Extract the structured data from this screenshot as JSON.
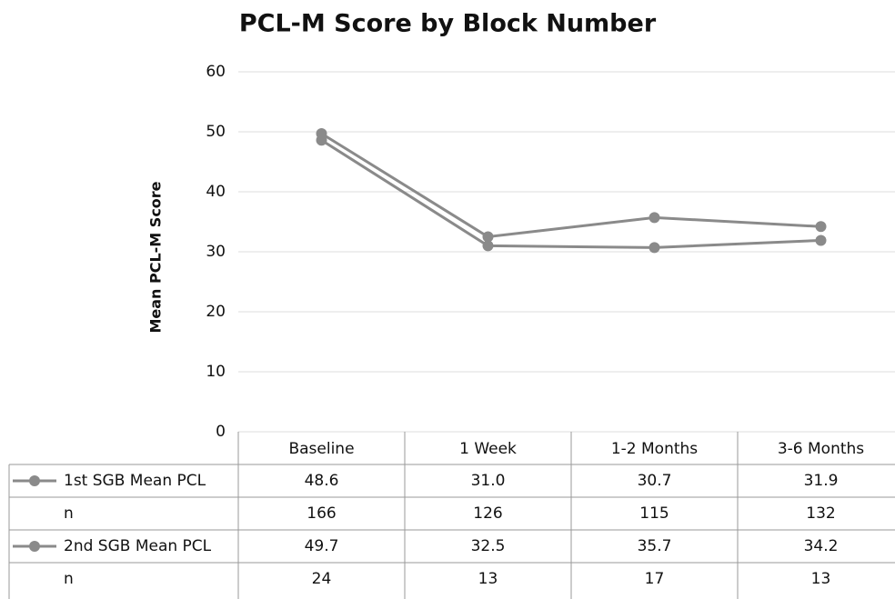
{
  "chart_data": {
    "type": "line",
    "title": "PCL-M Score by Block Number",
    "y_label": "Mean PCL-M Score",
    "categories": [
      "Baseline",
      "1 Week",
      "1-2 Months",
      "3-6 Months"
    ],
    "series": [
      {
        "name": "1st SGB Mean PCL",
        "color": "#8a8a8a",
        "values": [
          48.6,
          31.0,
          30.7,
          31.9
        ],
        "value_labels": [
          "48.6",
          "31.0",
          "30.7",
          "31.9"
        ]
      },
      {
        "name": "2nd SGB Mean PCL",
        "color": "#8a8a8a",
        "values": [
          49.7,
          32.5,
          35.7,
          34.2
        ],
        "value_labels": [
          "49.7",
          "32.5",
          "35.7",
          "34.2"
        ]
      }
    ],
    "n_rows": [
      {
        "label": "n",
        "values": [
          166,
          126,
          115,
          132
        ]
      },
      {
        "label": "n",
        "values": [
          24,
          13,
          17,
          13
        ]
      }
    ],
    "ylim": [
      0,
      60
    ],
    "yticks": [
      0,
      10,
      20,
      30,
      40,
      50,
      60
    ],
    "grid": true
  }
}
